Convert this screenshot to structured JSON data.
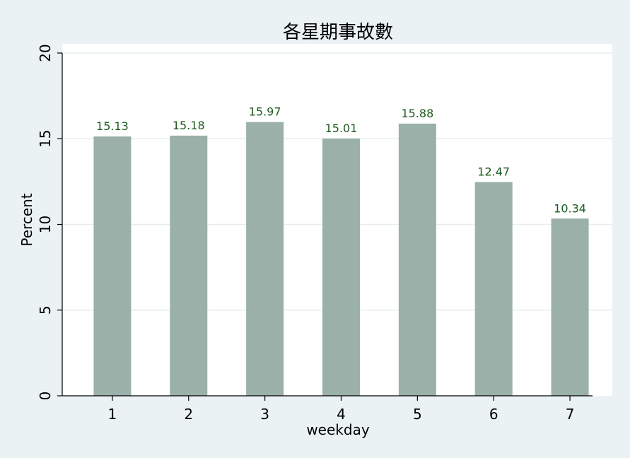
{
  "chart_data": {
    "type": "bar",
    "title": "各星期事故數",
    "xlabel": "weekday",
    "ylabel": "Percent",
    "categories": [
      "1",
      "2",
      "3",
      "4",
      "5",
      "6",
      "7"
    ],
    "values": [
      15.13,
      15.18,
      15.97,
      15.01,
      15.88,
      12.47,
      10.34
    ],
    "data_labels": [
      "15.13",
      "15.18",
      "15.97",
      "15.01",
      "15.88",
      "12.47",
      "10.34"
    ],
    "ylim": [
      0,
      20
    ],
    "yticks": [
      0,
      5,
      10,
      15,
      20
    ],
    "ytick_labels": [
      "0",
      "5",
      "10",
      "15",
      "20"
    ],
    "grid": true,
    "legend": "none",
    "colors": {
      "bar": "#9ab0a8",
      "plot_background": "#ffffff",
      "page_background": "#eaf2f3",
      "grid": "#e6eeee",
      "data_label": "#1e5b1e"
    }
  }
}
